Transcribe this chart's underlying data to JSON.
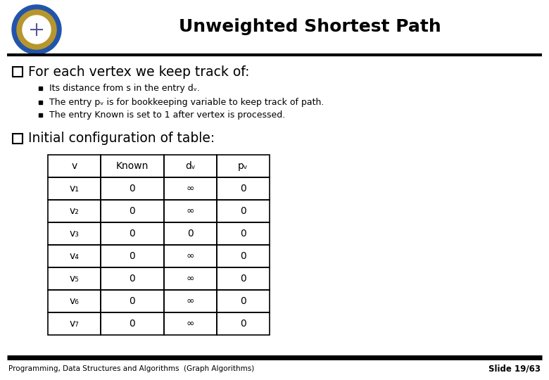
{
  "title": "Unweighted Shortest Path",
  "title_fontsize": 18,
  "bg_color": "#ffffff",
  "header_line_color": "#000000",
  "footer_line_color": "#1a1a1a",
  "bullet1_main": "For each vertex we keep track of:",
  "bullet1_sub": [
    "Its distance from s in the entry dᵥ.",
    "The entry pᵥ is for bookkeeping variable to keep track of path.",
    "The entry Known is set to 1 after vertex is processed."
  ],
  "bullet2_main": "Initial configuration of table:",
  "table_headers": [
    "v",
    "Known",
    "dᵥ",
    "pᵥ"
  ],
  "table_rows": [
    [
      "v₁",
      "0",
      "∞",
      "0"
    ],
    [
      "v₂",
      "0",
      "∞",
      "0"
    ],
    [
      "v₃",
      "0",
      "0",
      "0"
    ],
    [
      "v₄",
      "0",
      "∞",
      "0"
    ],
    [
      "v₅",
      "0",
      "∞",
      "0"
    ],
    [
      "v₆",
      "0",
      "∞",
      "0"
    ],
    [
      "v₇",
      "0",
      "∞",
      "0"
    ]
  ],
  "footer_text": "Programming, Data Structures and Algorithms  (Graph Algorithms)",
  "slide_number": "Slide 19/63",
  "font_color": "#000000",
  "logo_outer_color": "#2255aa",
  "logo_middle_color": "#b8962e",
  "logo_inner_color": "#ffffff"
}
